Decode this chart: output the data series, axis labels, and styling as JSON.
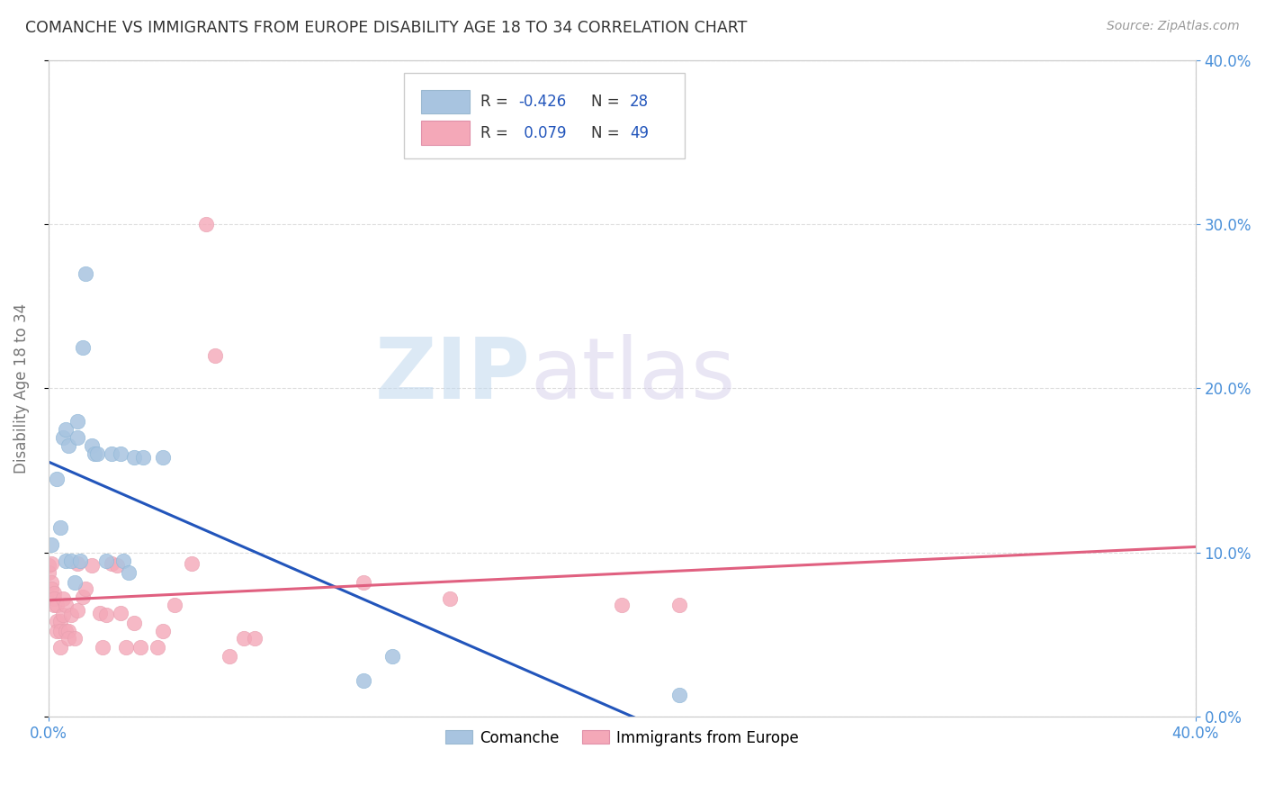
{
  "title": "COMANCHE VS IMMIGRANTS FROM EUROPE DISABILITY AGE 18 TO 34 CORRELATION CHART",
  "source": "Source: ZipAtlas.com",
  "ylabel": "Disability Age 18 to 34",
  "xlim": [
    0.0,
    0.4
  ],
  "ylim": [
    0.0,
    0.4
  ],
  "yticks": [
    0.0,
    0.1,
    0.2,
    0.3,
    0.4
  ],
  "xticks": [
    0.0,
    0.4
  ],
  "comanche_color": "#a8c4e0",
  "europe_color": "#f4a8b8",
  "comanche_line_color": "#2255bb",
  "europe_line_color": "#e06080",
  "legend_comanche_label": "Comanche",
  "legend_europe_label": "Immigrants from Europe",
  "r_comanche": -0.426,
  "n_comanche": 28,
  "r_europe": 0.079,
  "n_europe": 49,
  "comanche_x": [
    0.001,
    0.003,
    0.004,
    0.005,
    0.006,
    0.006,
    0.007,
    0.008,
    0.009,
    0.01,
    0.01,
    0.011,
    0.012,
    0.013,
    0.015,
    0.016,
    0.017,
    0.02,
    0.022,
    0.025,
    0.026,
    0.028,
    0.03,
    0.033,
    0.04,
    0.11,
    0.12,
    0.22
  ],
  "comanche_y": [
    0.105,
    0.145,
    0.115,
    0.17,
    0.175,
    0.095,
    0.165,
    0.095,
    0.082,
    0.18,
    0.17,
    0.095,
    0.225,
    0.27,
    0.165,
    0.16,
    0.16,
    0.095,
    0.16,
    0.16,
    0.095,
    0.088,
    0.158,
    0.158,
    0.158,
    0.022,
    0.037,
    0.013
  ],
  "europe_x": [
    0.0,
    0.0,
    0.001,
    0.001,
    0.001,
    0.002,
    0.002,
    0.002,
    0.003,
    0.003,
    0.003,
    0.004,
    0.004,
    0.004,
    0.005,
    0.005,
    0.006,
    0.006,
    0.007,
    0.007,
    0.008,
    0.009,
    0.01,
    0.01,
    0.012,
    0.013,
    0.015,
    0.018,
    0.019,
    0.02,
    0.022,
    0.024,
    0.025,
    0.027,
    0.03,
    0.032,
    0.038,
    0.04,
    0.044,
    0.05,
    0.055,
    0.058,
    0.063,
    0.068,
    0.072,
    0.11,
    0.14,
    0.2,
    0.22
  ],
  "europe_y": [
    0.092,
    0.088,
    0.082,
    0.093,
    0.078,
    0.075,
    0.072,
    0.068,
    0.068,
    0.058,
    0.052,
    0.058,
    0.042,
    0.052,
    0.072,
    0.062,
    0.068,
    0.052,
    0.052,
    0.048,
    0.062,
    0.048,
    0.093,
    0.065,
    0.073,
    0.078,
    0.092,
    0.063,
    0.042,
    0.062,
    0.093,
    0.092,
    0.063,
    0.042,
    0.057,
    0.042,
    0.042,
    0.052,
    0.068,
    0.093,
    0.3,
    0.22,
    0.037,
    0.048,
    0.048,
    0.082,
    0.072,
    0.068,
    0.068
  ],
  "watermark_zip": "ZIP",
  "watermark_atlas": "atlas",
  "background_color": "#ffffff",
  "grid_color": "#dddddd",
  "title_color": "#333333",
  "axis_label_color": "#777777",
  "tick_label_color": "#4a90d9",
  "source_color": "#999999",
  "legend_r_color": "#2255bb",
  "legend_text_color": "#333333"
}
